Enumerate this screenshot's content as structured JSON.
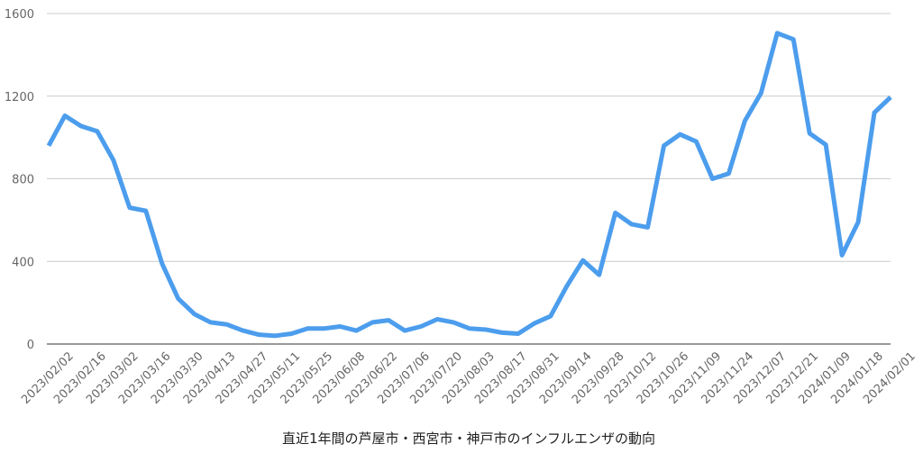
{
  "chart_data": {
    "type": "line",
    "title": "直近1年間の芦屋市・西宮市・神戸市のインフルエンザの動向",
    "categories": [
      "2023/02/02",
      null,
      "2023/02/16",
      null,
      "2023/03/02",
      null,
      "2023/03/16",
      null,
      "2023/03/30",
      null,
      "2023/04/13",
      null,
      "2023/04/27",
      null,
      "2023/05/11",
      null,
      "2023/05/25",
      null,
      "2023/06/08",
      null,
      "2023/06/22",
      null,
      "2023/07/06",
      null,
      "2023/07/20",
      null,
      "2023/08/03",
      null,
      "2023/08/17",
      null,
      "2023/08/31",
      null,
      "2023/09/14",
      null,
      "2023/09/28",
      null,
      "2023/10/12",
      null,
      "2023/10/26",
      null,
      "2023/11/09",
      null,
      "2023/11/24",
      null,
      "2023/12/07",
      null,
      "2023/12/21",
      null,
      "2024/01/09",
      null,
      "2024/01/18",
      null,
      "2024/02/01"
    ],
    "series": [
      {
        "color": "#4c9ded",
        "values": [
          960,
          1105,
          1055,
          1030,
          890,
          660,
          645,
          390,
          220,
          145,
          105,
          95,
          65,
          45,
          40,
          50,
          75,
          75,
          85,
          65,
          105,
          115,
          65,
          85,
          120,
          105,
          75,
          70,
          55,
          50,
          100,
          135,
          280,
          405,
          335,
          635,
          580,
          565,
          960,
          1015,
          980,
          800,
          825,
          1080,
          1215,
          1505,
          1475,
          1020,
          965,
          430,
          590,
          1120,
          1195
        ]
      }
    ],
    "ylim": [
      0,
      1600
    ],
    "yticks": [
      0,
      400,
      800,
      1200,
      1600
    ],
    "grid": true
  }
}
